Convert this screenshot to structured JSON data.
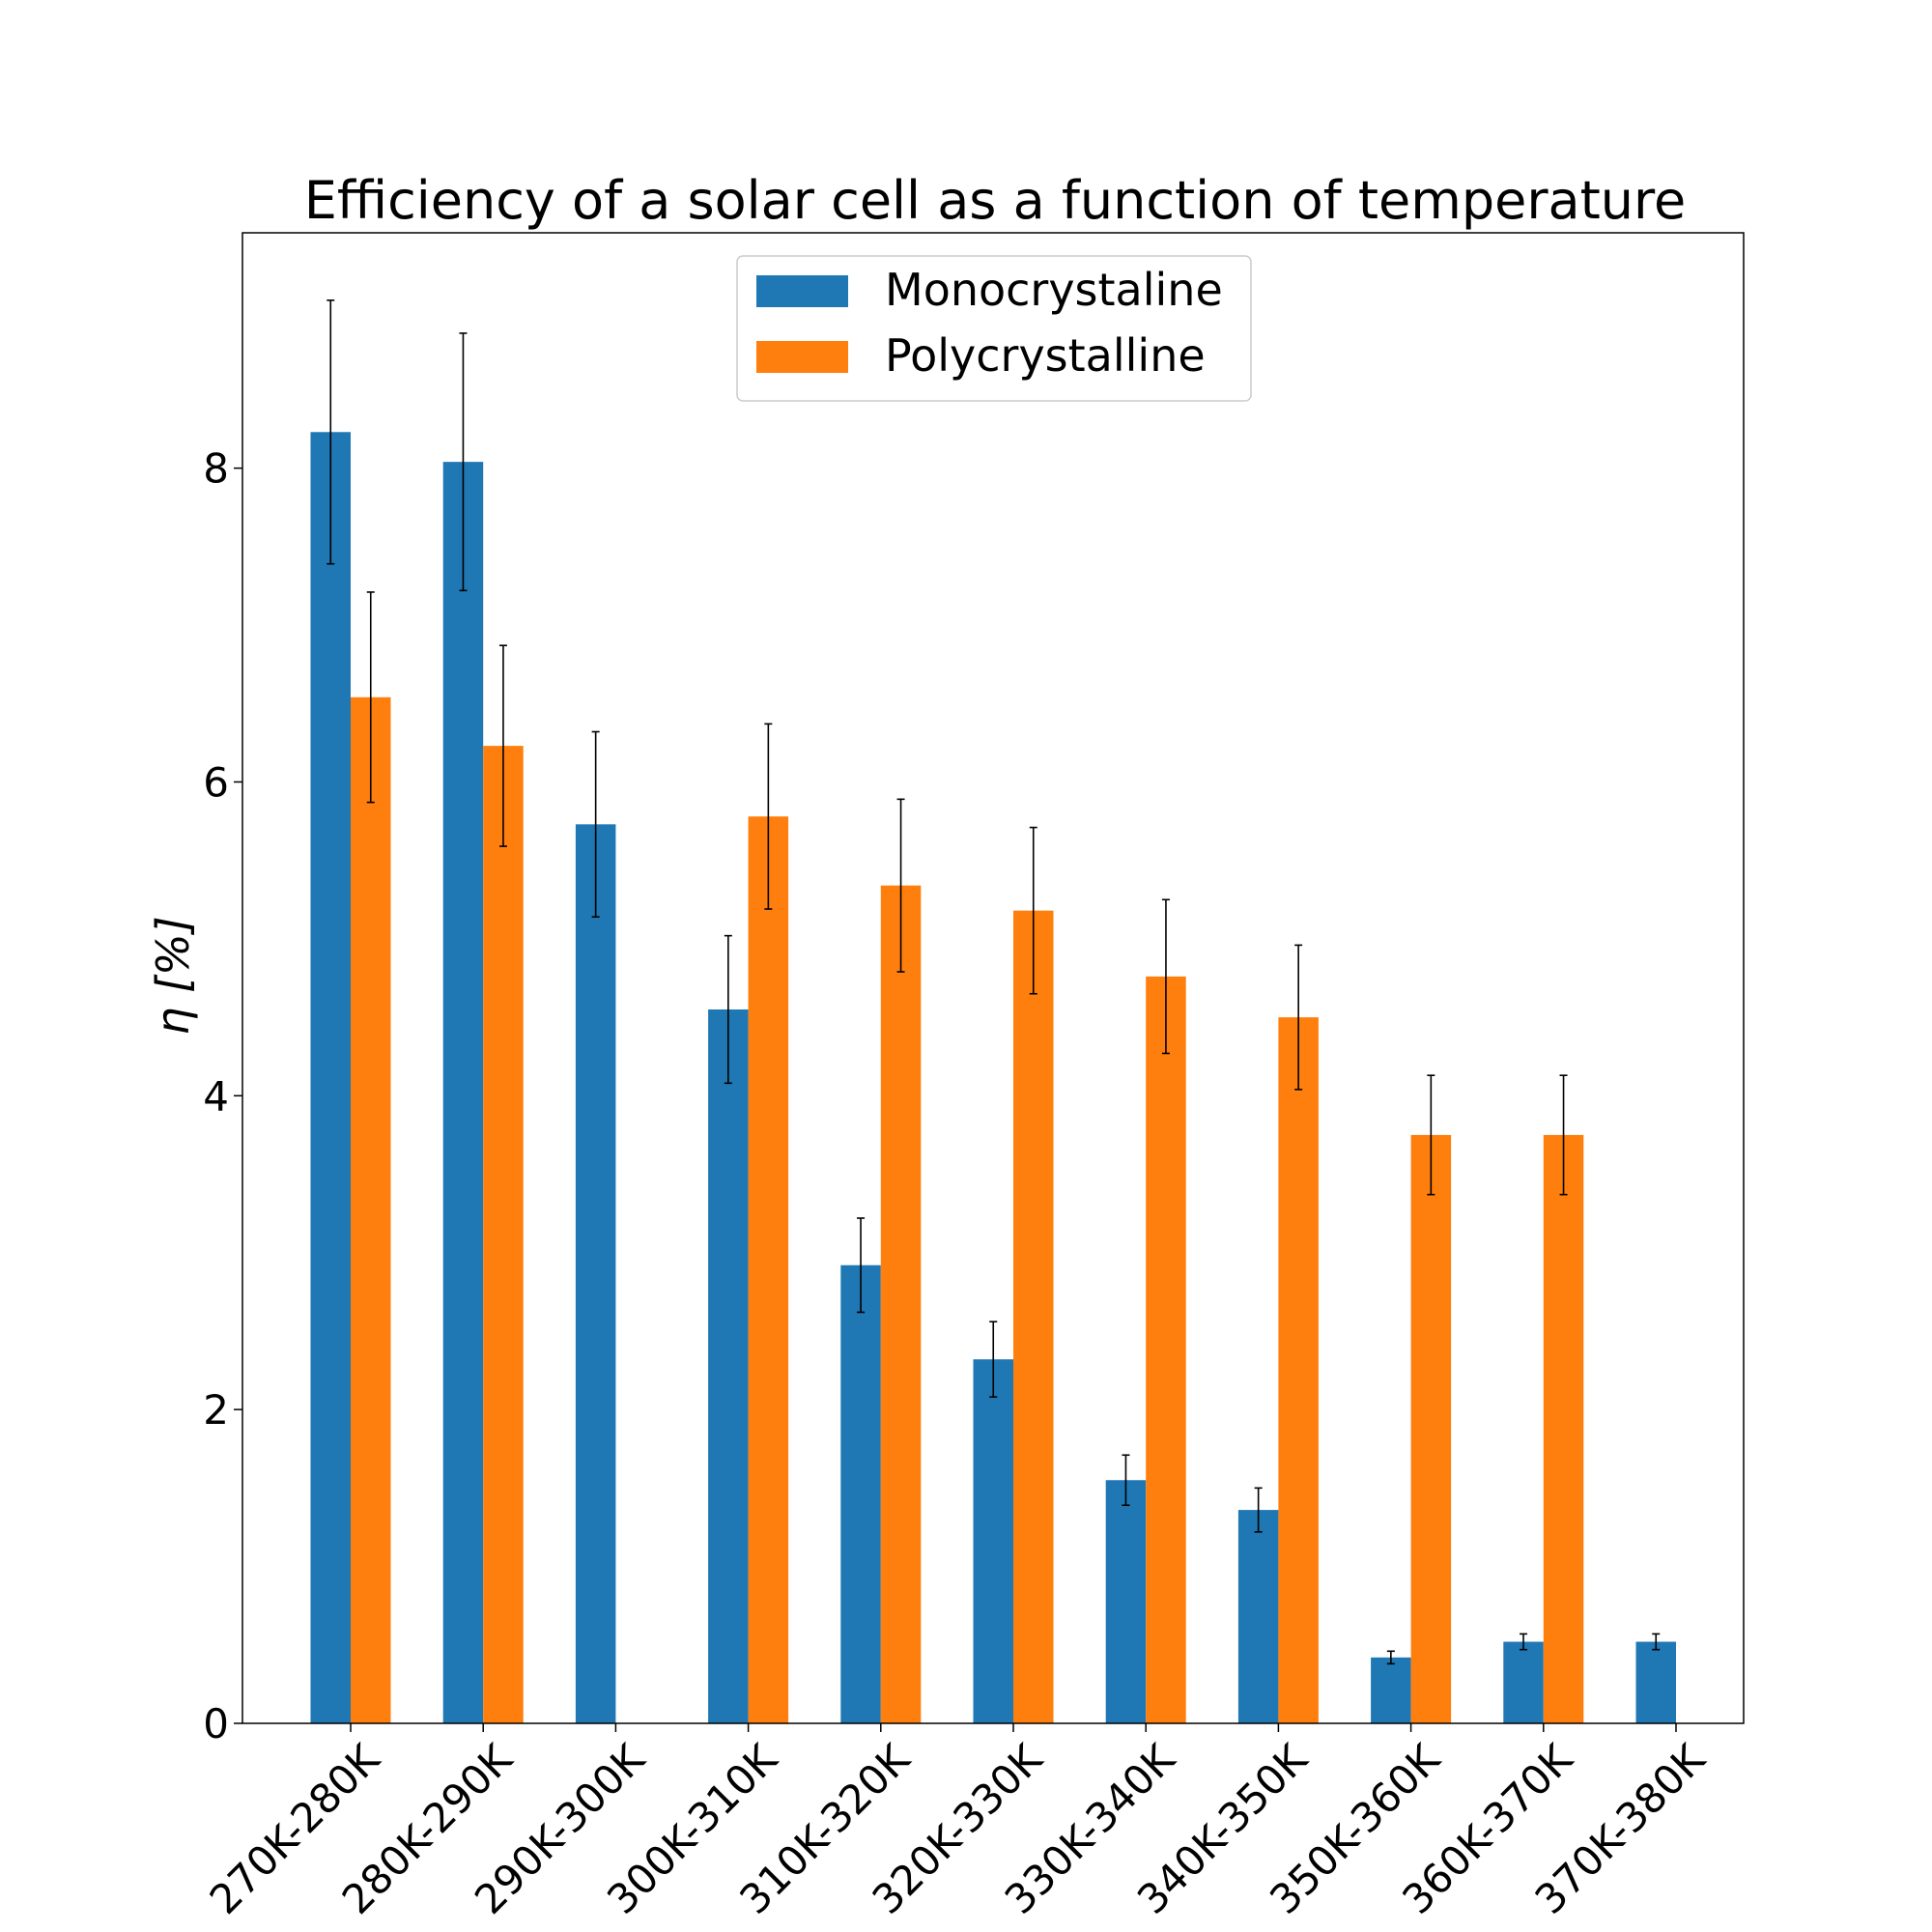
{
  "chart_data": {
    "type": "bar",
    "title": "Efficiency of a solar cell as a function of temperature",
    "xlabel": "",
    "ylabel": "η [%]",
    "ylim": [
      0,
      9.5
    ],
    "yticks": [
      "0",
      "2",
      "4",
      "6",
      "8"
    ],
    "grid": false,
    "legend_position": "top-center",
    "categories": [
      "270K-280K",
      "280K-290K",
      "290K-300K",
      "300K-310K",
      "310K-320K",
      "320K-330K",
      "330K-340K",
      "340K-350K",
      "350K-360K",
      "360K-370K",
      "370K-380K"
    ],
    "series": [
      {
        "name": "Monocrystaline",
        "color": "#1f77b4",
        "values": [
          8.23,
          8.04,
          5.73,
          4.55,
          2.92,
          2.32,
          1.55,
          1.36,
          0.42,
          0.52,
          0.52
        ],
        "errors": [
          0.84,
          0.82,
          0.59,
          0.47,
          0.3,
          0.24,
          0.16,
          0.14,
          0.04,
          0.05,
          0.05
        ]
      },
      {
        "name": "Polycrystalline",
        "color": "#ff7f0e",
        "values": [
          6.54,
          6.23,
          null,
          5.78,
          5.34,
          5.18,
          4.76,
          4.5,
          3.75,
          3.75,
          null
        ],
        "errors": [
          0.67,
          0.64,
          null,
          0.59,
          0.55,
          0.53,
          0.49,
          0.46,
          0.38,
          0.38,
          null
        ]
      }
    ]
  }
}
